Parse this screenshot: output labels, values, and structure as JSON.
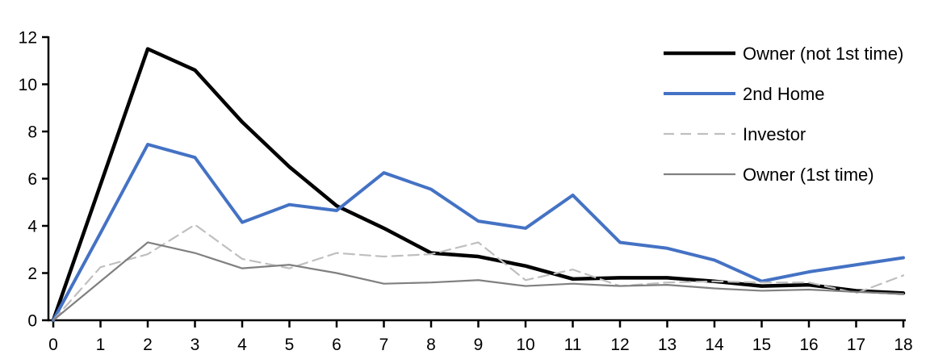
{
  "chart_data": {
    "type": "line",
    "title": "",
    "xlabel": "",
    "ylabel": "",
    "x": [
      0,
      1,
      2,
      3,
      4,
      5,
      6,
      7,
      8,
      9,
      10,
      11,
      12,
      13,
      14,
      15,
      16,
      17,
      18
    ],
    "xticks": [
      0,
      1,
      2,
      3,
      4,
      5,
      6,
      7,
      8,
      9,
      10,
      11,
      12,
      13,
      14,
      15,
      16,
      17,
      18
    ],
    "yticks": [
      0,
      2,
      4,
      6,
      8,
      10,
      12
    ],
    "ylim": [
      0,
      12
    ],
    "xlim": [
      0,
      18
    ],
    "grid": false,
    "legend_position": "top-right",
    "axis_color": "#000000",
    "series": [
      {
        "name": "Owner (not 1st time)",
        "color": "#000000",
        "style": "solid",
        "width": 4.5,
        "values": [
          0,
          5.75,
          11.5,
          10.6,
          8.4,
          6.5,
          4.85,
          3.9,
          2.85,
          2.7,
          2.3,
          1.75,
          1.8,
          1.8,
          1.65,
          1.45,
          1.5,
          1.25,
          1.15
        ]
      },
      {
        "name": "2nd Home",
        "color": "#4472C4",
        "style": "solid",
        "width": 4,
        "values": [
          0,
          3.7,
          7.45,
          6.9,
          4.15,
          4.9,
          4.65,
          6.25,
          5.55,
          4.2,
          3.9,
          5.3,
          3.3,
          3.05,
          2.55,
          1.65,
          2.05,
          2.35,
          2.65
        ]
      },
      {
        "name": "Investor",
        "color": "#BFBFBF",
        "style": "dashed",
        "width": 2.2,
        "values": [
          0,
          2.25,
          2.8,
          4.05,
          2.6,
          2.2,
          2.85,
          2.7,
          2.8,
          3.3,
          1.7,
          2.15,
          1.45,
          1.6,
          1.65,
          1.6,
          1.6,
          1.15,
          1.9
        ]
      },
      {
        "name": "Owner (1st time)",
        "color": "#808080",
        "style": "solid",
        "width": 2.2,
        "values": [
          0,
          1.65,
          3.3,
          2.85,
          2.2,
          2.35,
          2.0,
          1.55,
          1.6,
          1.7,
          1.45,
          1.55,
          1.45,
          1.5,
          1.35,
          1.25,
          1.3,
          1.2,
          1.12
        ]
      }
    ]
  }
}
